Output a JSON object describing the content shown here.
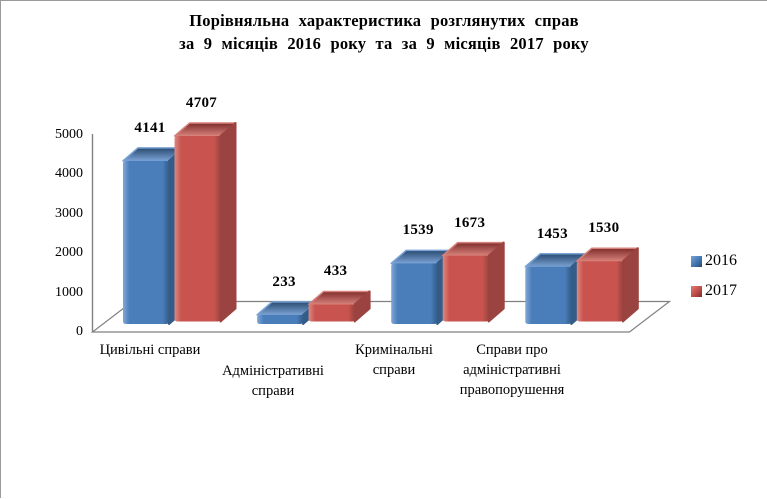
{
  "frame": {
    "border_color": "#9a9a9a",
    "background": "#ffffff"
  },
  "title": {
    "line1": "Порівняльна характеристика розглянутих справ",
    "line2": "за 9 місяців 2016 року та за 9 місяців 2017 року"
  },
  "chart_data": {
    "type": "bar",
    "style": "3d-clustered-column",
    "title": "Порівняльна характеристика розглянутих справ за 9 місяців 2016 року та за 9 місяців 2017 року",
    "categories": [
      "Цивільні справи",
      "Адміністративні справи",
      "Кримінальні справи",
      "Справи про адміністративні правопорушення"
    ],
    "series": [
      {
        "name": "2016",
        "color": "#4A7EBB",
        "values": [
          4141,
          233,
          1539,
          1453
        ]
      },
      {
        "name": "2017",
        "color": "#C9534E",
        "values": [
          4707,
          433,
          1673,
          1530
        ]
      }
    ],
    "ylim": [
      0,
      5000
    ],
    "yticks": [
      0,
      1000,
      2000,
      3000,
      4000,
      5000
    ],
    "grid": false,
    "data_labels": true,
    "legend_position": "right",
    "axis_color": "#808080"
  }
}
